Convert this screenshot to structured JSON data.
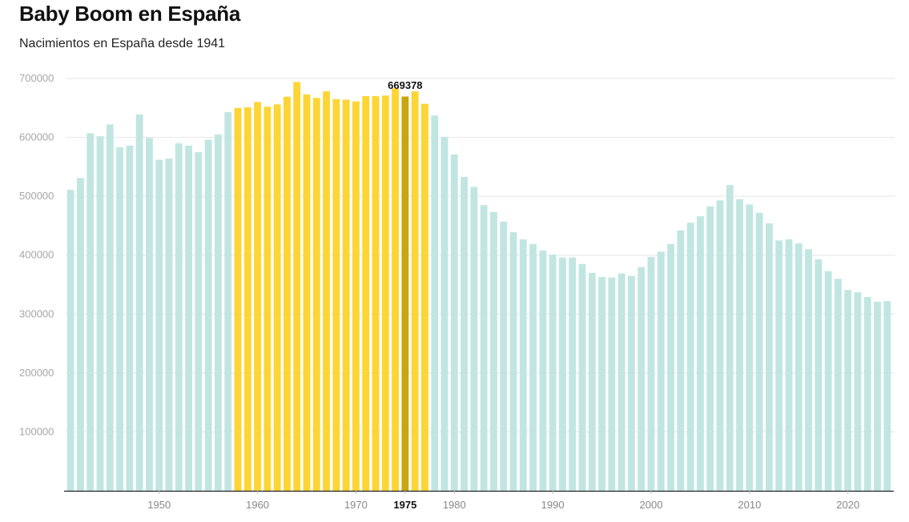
{
  "chart_data": {
    "type": "bar",
    "title": "Baby Boom en España",
    "subtitle": "Nacimientos en España desde 1941",
    "xlabel": "",
    "ylabel": "",
    "ylim": [
      0,
      700000
    ],
    "yticks": [
      "100000",
      "200000",
      "300000",
      "400000",
      "500000",
      "600000",
      "700000"
    ],
    "yticks_values": [
      100000,
      200000,
      300000,
      400000,
      500000,
      600000,
      700000
    ],
    "xticks": [
      "1950",
      "1960",
      "1970",
      "1975",
      "1980",
      "1990",
      "2000",
      "2010",
      "2020"
    ],
    "grid": true,
    "boom_range": [
      1958,
      1977
    ],
    "highlight": {
      "year": 1975,
      "label": "669378"
    },
    "colors": {
      "normal": "#c1e6e2",
      "boom": "#fdd535",
      "highlight": "#c9a60e",
      "axis": "#222222",
      "grid": "#e6e6e6"
    },
    "years": [
      1941,
      1942,
      1943,
      1944,
      1945,
      1946,
      1947,
      1948,
      1949,
      1950,
      1951,
      1952,
      1953,
      1954,
      1955,
      1956,
      1957,
      1958,
      1959,
      1960,
      1961,
      1962,
      1963,
      1964,
      1965,
      1966,
      1967,
      1968,
      1969,
      1970,
      1971,
      1972,
      1973,
      1974,
      1975,
      1976,
      1977,
      1978,
      1979,
      1980,
      1981,
      1982,
      1983,
      1984,
      1985,
      1986,
      1987,
      1988,
      1989,
      1990,
      1991,
      1992,
      1993,
      1994,
      1995,
      1996,
      1997,
      1998,
      1999,
      2000,
      2001,
      2002,
      2003,
      2004,
      2005,
      2006,
      2007,
      2008,
      2009,
      2010,
      2011,
      2012,
      2013,
      2014,
      2015,
      2016,
      2017,
      2018,
      2019,
      2020,
      2021,
      2022,
      2023,
      2024
    ],
    "values": [
      511000,
      531000,
      607000,
      602000,
      622000,
      583000,
      586000,
      639000,
      599000,
      562000,
      564000,
      590000,
      586000,
      575000,
      596000,
      605000,
      643000,
      650000,
      651000,
      660000,
      652000,
      656000,
      669000,
      694000,
      673000,
      667000,
      678000,
      665000,
      664000,
      661000,
      670000,
      670000,
      671000,
      683000,
      669378,
      678000,
      657000,
      637000,
      601000,
      571000,
      533000,
      516000,
      485000,
      473000,
      457000,
      439000,
      427000,
      419000,
      408000,
      401000,
      396000,
      396000,
      385000,
      370000,
      363000,
      362000,
      369000,
      365000,
      380000,
      397000,
      406000,
      419000,
      442000,
      455000,
      466000,
      483000,
      493000,
      519000,
      495000,
      486000,
      472000,
      454000,
      425000,
      427000,
      420000,
      410000,
      393000,
      373000,
      360000,
      341000,
      337000,
      329000,
      321000,
      322000
    ]
  }
}
